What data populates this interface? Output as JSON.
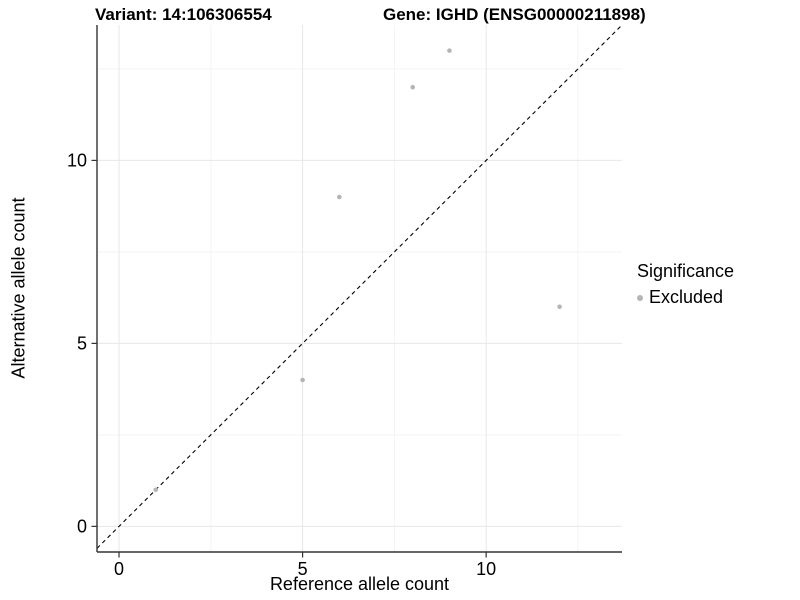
{
  "titles": {
    "variant": "Variant: 14:106306554",
    "gene": "Gene: IGHD (ENSG00000211898)"
  },
  "chart_data": {
    "type": "scatter",
    "title_left": "Variant: 14:106306554",
    "title_right": "Gene: IGHD (ENSG00000211898)",
    "xlabel": "Reference allele count",
    "ylabel": "Alternative allele count",
    "xlim": [
      -0.6,
      13.7
    ],
    "ylim": [
      -0.7,
      13.7
    ],
    "x_ticks": [
      0,
      5,
      10
    ],
    "y_ticks": [
      0,
      5,
      10
    ],
    "x_minor_gridlines": [
      2.5,
      7.5,
      12.5
    ],
    "y_minor_gridlines": [
      2.5,
      7.5,
      12.5
    ],
    "grid": "major and minor gridlines, very faint, white background",
    "legend_position": "right",
    "series": [
      {
        "name": "Excluded",
        "color": "#b5b5b5",
        "points": [
          [
            1,
            1
          ],
          [
            5,
            4
          ],
          [
            6,
            9
          ],
          [
            8,
            12
          ],
          [
            9,
            13
          ],
          [
            12,
            6
          ]
        ]
      }
    ],
    "reference_line": {
      "style": "dashed",
      "slope": 1,
      "intercept": 0,
      "color": "#000000"
    },
    "colors": {
      "grid_major": "#e7e7e7",
      "grid_minor": "#f3f3f3",
      "axis_line": "#333333",
      "tick_text": "#000000"
    }
  },
  "legend": {
    "title": "Significance",
    "items": [
      {
        "label": "Excluded",
        "color": "#b5b5b5"
      }
    ]
  }
}
